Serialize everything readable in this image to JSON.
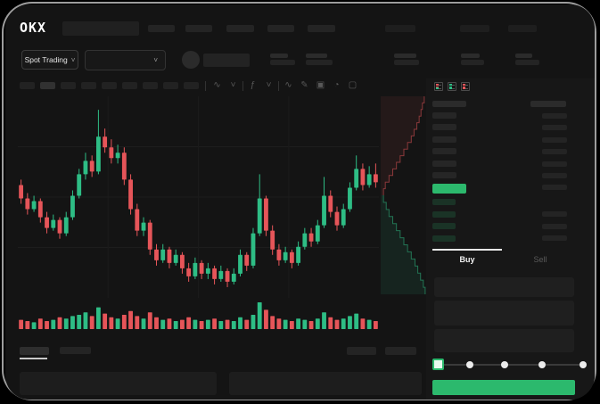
{
  "app": {
    "logo_text": "OKX"
  },
  "header": {
    "market_selector": {
      "label": "Spot Trading",
      "chevron": "˅"
    },
    "pair_selector": {
      "chevron": "˅"
    }
  },
  "toolbar": {
    "icons": [
      {
        "name": "candle-style-icon",
        "glyph": "∿"
      },
      {
        "name": "candle-style-chevron-icon",
        "glyph": "˅"
      },
      {
        "name": "toolbar-divider",
        "glyph": "|"
      },
      {
        "name": "indicators-icon",
        "glyph": "ƒ"
      },
      {
        "name": "indicators-chevron-icon",
        "glyph": "˅"
      },
      {
        "name": "toolbar-divider",
        "glyph": "|"
      },
      {
        "name": "line-chart-icon",
        "glyph": "∿"
      },
      {
        "name": "draw-tools-icon",
        "glyph": "✎"
      },
      {
        "name": "screenshot-icon",
        "glyph": "▣"
      },
      {
        "name": "chart-settings-icon",
        "glyph": "◔"
      },
      {
        "name": "fullscreen-icon",
        "glyph": "▢"
      }
    ]
  },
  "order_book": {
    "view_icons": [
      "book-all-icon",
      "book-bids-icon",
      "book-asks-icon"
    ],
    "skeleton": {
      "ask_rows": 6,
      "bid_rows": 4,
      "amount_rows_upper": 7,
      "amount_rows_lower": 3
    },
    "last_price_color": "#2cb96d"
  },
  "trade_form": {
    "tabs": [
      {
        "label": "Buy",
        "active": true
      },
      {
        "label": "Sell",
        "active": false
      }
    ],
    "input_rows": 3,
    "slider": {
      "stops": 5,
      "active_stop": 0
    },
    "submit_color": "#2cb96d"
  },
  "chart_data": {
    "type": "candlestick",
    "title": "",
    "value_scale": [
      20,
      95
    ],
    "grid": true,
    "colors": {
      "up": "#2ebd85",
      "down": "#e65559"
    },
    "candles": [
      [
        62,
        57,
        55,
        64
      ],
      [
        57,
        53,
        51,
        59
      ],
      [
        53,
        56,
        52,
        58
      ],
      [
        56,
        50,
        48,
        57
      ],
      [
        50,
        46,
        44,
        52
      ],
      [
        46,
        49,
        45,
        51
      ],
      [
        49,
        44,
        42,
        50
      ],
      [
        44,
        50,
        43,
        52
      ],
      [
        50,
        58,
        49,
        60
      ],
      [
        58,
        66,
        57,
        68
      ],
      [
        66,
        71,
        64,
        74
      ],
      [
        71,
        67,
        65,
        73
      ],
      [
        67,
        80,
        66,
        90
      ],
      [
        80,
        76,
        74,
        83
      ],
      [
        76,
        72,
        70,
        79
      ],
      [
        72,
        74,
        70,
        77
      ],
      [
        74,
        64,
        62,
        76
      ],
      [
        64,
        53,
        51,
        66
      ],
      [
        53,
        45,
        43,
        55
      ],
      [
        45,
        48,
        43,
        50
      ],
      [
        48,
        38,
        36,
        49
      ],
      [
        38,
        34,
        32,
        40
      ],
      [
        34,
        38,
        33,
        40
      ],
      [
        38,
        33,
        31,
        39
      ],
      [
        33,
        36,
        32,
        38
      ],
      [
        36,
        31,
        29,
        37
      ],
      [
        31,
        28,
        26,
        33
      ],
      [
        28,
        33,
        27,
        35
      ],
      [
        33,
        29,
        27,
        34
      ],
      [
        29,
        31,
        27,
        33
      ],
      [
        31,
        27,
        25,
        32
      ],
      [
        27,
        30,
        26,
        32
      ],
      [
        30,
        26,
        24,
        31
      ],
      [
        26,
        29,
        25,
        31
      ],
      [
        29,
        36,
        28,
        38
      ],
      [
        36,
        32,
        30,
        37
      ],
      [
        32,
        44,
        31,
        46
      ],
      [
        44,
        57,
        43,
        66
      ],
      [
        57,
        45,
        43,
        58
      ],
      [
        45,
        38,
        36,
        47
      ],
      [
        38,
        34,
        32,
        40
      ],
      [
        34,
        37,
        33,
        39
      ],
      [
        37,
        33,
        31,
        38
      ],
      [
        33,
        39,
        32,
        41
      ],
      [
        39,
        44,
        38,
        46
      ],
      [
        44,
        41,
        39,
        46
      ],
      [
        41,
        47,
        40,
        49
      ],
      [
        47,
        58,
        46,
        65
      ],
      [
        58,
        52,
        50,
        60
      ],
      [
        52,
        47,
        45,
        54
      ],
      [
        47,
        53,
        46,
        55
      ],
      [
        53,
        61,
        52,
        63
      ],
      [
        61,
        68,
        60,
        73
      ],
      [
        68,
        62,
        60,
        70
      ],
      [
        62,
        66,
        61,
        69
      ],
      [
        66,
        63,
        61,
        70
      ]
    ],
    "volume": [
      6,
      5,
      4,
      7,
      5,
      6,
      8,
      7,
      9,
      10,
      12,
      9,
      16,
      11,
      8,
      7,
      10,
      13,
      9,
      7,
      12,
      8,
      6,
      7,
      5,
      6,
      8,
      6,
      5,
      6,
      7,
      5,
      6,
      5,
      8,
      6,
      10,
      20,
      14,
      9,
      7,
      6,
      5,
      7,
      6,
      5,
      7,
      12,
      8,
      6,
      7,
      9,
      11,
      7,
      6,
      5
    ],
    "depth": {
      "asks": [
        94,
        90,
        87,
        83,
        78,
        72,
        66,
        58,
        50,
        42,
        34,
        26,
        18,
        10,
        6
      ],
      "bids": [
        6,
        12,
        18,
        26,
        34,
        42,
        50,
        58,
        66,
        74,
        80,
        86,
        92,
        96
      ],
      "ask_color": "#e65559",
      "bid_color": "#2ebd85"
    }
  }
}
